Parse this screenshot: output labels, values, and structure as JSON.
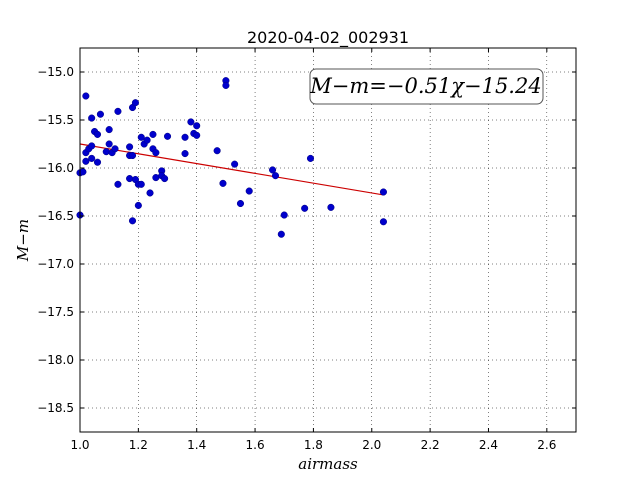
{
  "chart_data": {
    "type": "scatter",
    "title": "2020-04-02_002931",
    "xlabel": "airmass",
    "ylabel": "M−m",
    "xlim": [
      1.0,
      2.7
    ],
    "ylim": [
      -18.75,
      -14.75
    ],
    "y_inverted": true,
    "grid": true,
    "grid_style": "dotted",
    "xticks": [
      1.0,
      1.2,
      1.4,
      1.6,
      1.8,
      2.0,
      2.2,
      2.4,
      2.6
    ],
    "xtick_labels": [
      "1.0",
      "1.2",
      "1.4",
      "1.6",
      "1.8",
      "2.0",
      "2.2",
      "2.4",
      "2.6"
    ],
    "yticks": [
      -15.0,
      -15.5,
      -16.0,
      -16.5,
      -17.0,
      -17.5,
      -18.0,
      -18.5
    ],
    "ytick_labels": [
      "−15.0",
      "−15.5",
      "−16.0",
      "−16.5",
      "−17.0",
      "−17.5",
      "−18.0",
      "−18.5"
    ],
    "annotation": "M−m=−0.51χ−15.24",
    "annotation_position": "top-right",
    "marker_color": "#0000cc",
    "fit_line_color": "#cc0000",
    "fit": {
      "slope": -0.51,
      "intercept": -15.24,
      "x_range": [
        1.0,
        2.04
      ]
    },
    "points": [
      {
        "x": 1.0,
        "y": -16.05
      },
      {
        "x": 1.0,
        "y": -16.49
      },
      {
        "x": 1.01,
        "y": -16.04
      },
      {
        "x": 1.02,
        "y": -15.25
      },
      {
        "x": 1.02,
        "y": -15.84
      },
      {
        "x": 1.02,
        "y": -15.93
      },
      {
        "x": 1.03,
        "y": -15.8
      },
      {
        "x": 1.04,
        "y": -15.48
      },
      {
        "x": 1.04,
        "y": -15.77
      },
      {
        "x": 1.04,
        "y": -15.9
      },
      {
        "x": 1.05,
        "y": -15.62
      },
      {
        "x": 1.06,
        "y": -15.65
      },
      {
        "x": 1.06,
        "y": -15.94
      },
      {
        "x": 1.07,
        "y": -15.44
      },
      {
        "x": 1.09,
        "y": -15.83
      },
      {
        "x": 1.1,
        "y": -15.6
      },
      {
        "x": 1.1,
        "y": -15.75
      },
      {
        "x": 1.11,
        "y": -15.84
      },
      {
        "x": 1.12,
        "y": -15.8
      },
      {
        "x": 1.13,
        "y": -15.41
      },
      {
        "x": 1.13,
        "y": -16.17
      },
      {
        "x": 1.17,
        "y": -15.87
      },
      {
        "x": 1.17,
        "y": -15.78
      },
      {
        "x": 1.17,
        "y": -16.11
      },
      {
        "x": 1.18,
        "y": -15.37
      },
      {
        "x": 1.18,
        "y": -15.87
      },
      {
        "x": 1.18,
        "y": -16.55
      },
      {
        "x": 1.19,
        "y": -15.32
      },
      {
        "x": 1.19,
        "y": -16.12
      },
      {
        "x": 1.2,
        "y": -16.17
      },
      {
        "x": 1.2,
        "y": -16.39
      },
      {
        "x": 1.21,
        "y": -15.68
      },
      {
        "x": 1.21,
        "y": -16.17
      },
      {
        "x": 1.22,
        "y": -15.75
      },
      {
        "x": 1.23,
        "y": -15.71
      },
      {
        "x": 1.24,
        "y": -16.26
      },
      {
        "x": 1.25,
        "y": -15.65
      },
      {
        "x": 1.25,
        "y": -15.8
      },
      {
        "x": 1.26,
        "y": -15.84
      },
      {
        "x": 1.26,
        "y": -16.1
      },
      {
        "x": 1.28,
        "y": -16.03
      },
      {
        "x": 1.28,
        "y": -16.08
      },
      {
        "x": 1.29,
        "y": -16.11
      },
      {
        "x": 1.3,
        "y": -15.67
      },
      {
        "x": 1.36,
        "y": -15.68
      },
      {
        "x": 1.36,
        "y": -15.85
      },
      {
        "x": 1.38,
        "y": -15.52
      },
      {
        "x": 1.39,
        "y": -15.64
      },
      {
        "x": 1.4,
        "y": -15.66
      },
      {
        "x": 1.4,
        "y": -15.56
      },
      {
        "x": 1.47,
        "y": -15.82
      },
      {
        "x": 1.49,
        "y": -16.16
      },
      {
        "x": 1.5,
        "y": -15.09
      },
      {
        "x": 1.5,
        "y": -15.14
      },
      {
        "x": 1.53,
        "y": -15.96
      },
      {
        "x": 1.55,
        "y": -16.37
      },
      {
        "x": 1.58,
        "y": -16.24
      },
      {
        "x": 1.66,
        "y": -16.02
      },
      {
        "x": 1.67,
        "y": -16.08
      },
      {
        "x": 1.69,
        "y": -16.69
      },
      {
        "x": 1.7,
        "y": -16.49
      },
      {
        "x": 1.77,
        "y": -16.42
      },
      {
        "x": 1.79,
        "y": -15.9
      },
      {
        "x": 1.86,
        "y": -16.41
      },
      {
        "x": 2.04,
        "y": -16.25
      },
      {
        "x": 2.04,
        "y": -16.56
      }
    ]
  }
}
